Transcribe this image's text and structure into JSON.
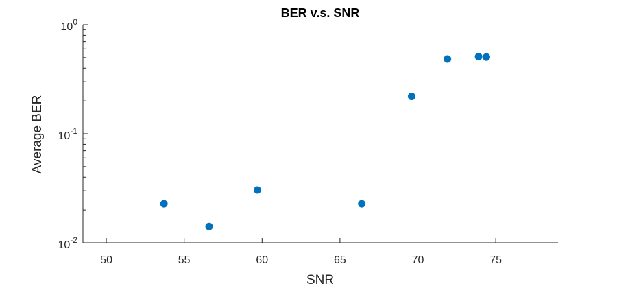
{
  "chart_data": {
    "type": "scatter",
    "title": "BER v.s. SNR",
    "xlabel": "SNR",
    "ylabel": "Average BER",
    "xlim": [
      48.5,
      79
    ],
    "ylim": [
      0.01,
      1
    ],
    "yscale": "log",
    "grid": false,
    "legend": "none",
    "x_ticks": [
      50,
      55,
      60,
      65,
      70,
      75
    ],
    "y_ticks": [
      {
        "value": 0.01,
        "base": "10",
        "exp": "-2"
      },
      {
        "value": 0.1,
        "base": "10",
        "exp": "-1"
      },
      {
        "value": 1,
        "base": "10",
        "exp": "0"
      }
    ],
    "series": [
      {
        "color": "#0072BD",
        "points": [
          {
            "x": 53.7,
            "y": 0.0228
          },
          {
            "x": 56.6,
            "y": 0.0141
          },
          {
            "x": 59.7,
            "y": 0.0305
          },
          {
            "x": 66.4,
            "y": 0.0228
          },
          {
            "x": 69.6,
            "y": 0.22
          },
          {
            "x": 71.9,
            "y": 0.485
          },
          {
            "x": 73.9,
            "y": 0.51
          },
          {
            "x": 74.4,
            "y": 0.505
          }
        ]
      }
    ]
  }
}
